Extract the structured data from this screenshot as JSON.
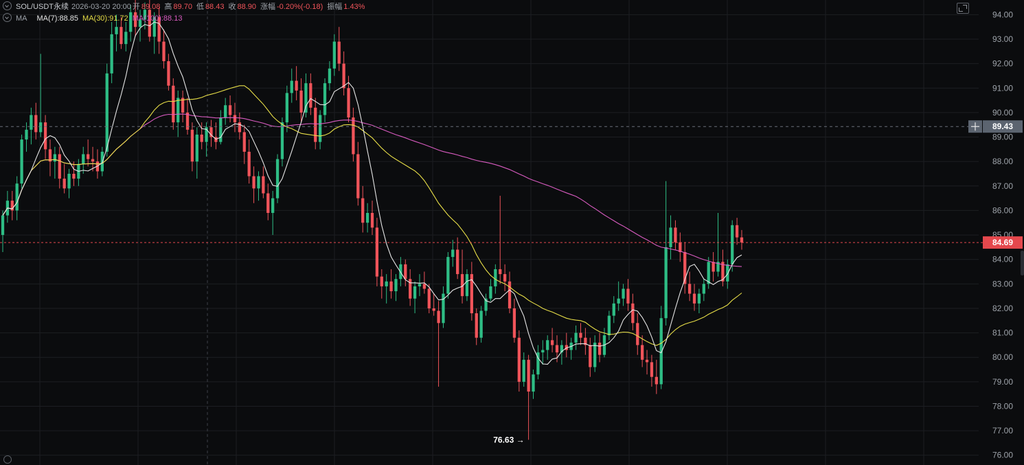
{
  "header": {
    "symbol": "SOL/USDT永续",
    "datetime": "2026-03-20 20:00",
    "open_label": "开",
    "open_value": "89.08",
    "high_label": "高",
    "high_value": "89.70",
    "low_label": "低",
    "low_value": "88.43",
    "close_label": "收",
    "close_value": "88.90",
    "change_label": "涨幅",
    "change_value": "-0.20%(-0.18)",
    "amplitude_label": "振幅",
    "amplitude_value": "1.43%",
    "indicator_name": "MA",
    "ma7_label": "MA(7):88.85",
    "ma30_label": "MA(30):91.72",
    "ma100_label": "MA(100):88.13"
  },
  "colors": {
    "background": "#0b0c0e",
    "grid": "#1c1e22",
    "up": "#2ebd85",
    "down": "#f0545a",
    "ma7": "#e6e6e6",
    "ma30": "#e8df48",
    "ma100": "#d85bc0",
    "crosshair_tag": "#5c6470",
    "last_price_tag": "#e5484d",
    "axis_text": "#9ea3aa"
  },
  "icons": [
    "fullscreen-icon",
    "eye-icon",
    "crosshair-plus-icon",
    "scroll-handle"
  ],
  "chart_data": {
    "type": "candlestick",
    "y_axis_ticks": [
      "94.00",
      "93.00",
      "92.00",
      "91.00",
      "90.00",
      "89.00",
      "88.00",
      "87.00",
      "86.00",
      "85.00",
      "84.00",
      "83.00",
      "82.00",
      "81.00",
      "80.00",
      "79.00",
      "78.00",
      "77.00",
      "76.00"
    ],
    "ylim": [
      75.6,
      94.6
    ],
    "grid": true,
    "crosshair_price": "89.43",
    "last_price": "84.69",
    "low_marker": "76.63",
    "low_marker_arrow": "→",
    "candles_approx": [
      [
        85.0,
        86.0,
        84.3,
        85.8
      ],
      [
        85.8,
        86.8,
        85.5,
        86.4
      ],
      [
        86.4,
        86.8,
        85.6,
        86.0
      ],
      [
        86.0,
        87.4,
        85.6,
        87.1
      ],
      [
        87.1,
        89.1,
        86.9,
        88.9
      ],
      [
        88.9,
        89.6,
        88.4,
        89.3
      ],
      [
        89.3,
        90.2,
        88.7,
        89.9
      ],
      [
        89.9,
        90.4,
        88.9,
        89.2
      ],
      [
        89.2,
        92.4,
        89.0,
        89.6
      ],
      [
        89.6,
        89.9,
        88.1,
        88.5
      ],
      [
        88.5,
        88.9,
        87.4,
        88.0
      ],
      [
        88.0,
        88.6,
        87.3,
        88.3
      ],
      [
        88.3,
        88.6,
        86.9,
        87.3
      ],
      [
        87.3,
        87.9,
        86.7,
        86.9
      ],
      [
        86.9,
        87.7,
        86.5,
        87.5
      ],
      [
        87.5,
        88.0,
        87.0,
        87.3
      ],
      [
        87.3,
        88.1,
        87.0,
        87.9
      ],
      [
        87.9,
        88.6,
        87.5,
        88.3
      ],
      [
        88.3,
        88.9,
        87.8,
        88.1
      ],
      [
        88.1,
        88.6,
        87.6,
        88.0
      ],
      [
        88.0,
        88.5,
        87.3,
        87.6
      ],
      [
        87.6,
        88.6,
        87.4,
        88.4
      ],
      [
        88.4,
        92.0,
        88.2,
        91.6
      ],
      [
        91.6,
        93.7,
        91.2,
        93.2
      ],
      [
        93.2,
        94.0,
        92.5,
        93.5
      ],
      [
        93.5,
        93.9,
        92.6,
        92.8
      ],
      [
        92.8,
        93.7,
        92.5,
        93.3
      ],
      [
        93.3,
        94.4,
        92.9,
        94.1
      ],
      [
        94.1,
        94.6,
        93.1,
        93.5
      ],
      [
        93.5,
        94.2,
        92.9,
        93.8
      ],
      [
        93.8,
        94.5,
        93.4,
        94.2
      ],
      [
        94.2,
        94.6,
        92.9,
        93.1
      ],
      [
        93.1,
        94.1,
        92.4,
        93.9
      ],
      [
        93.9,
        94.3,
        92.4,
        92.9
      ],
      [
        92.9,
        93.4,
        91.8,
        92.1
      ],
      [
        92.1,
        92.4,
        90.9,
        91.1
      ],
      [
        91.1,
        91.4,
        89.3,
        89.6
      ],
      [
        89.6,
        90.9,
        89.0,
        90.6
      ],
      [
        90.6,
        90.9,
        89.6,
        90.0
      ],
      [
        90.0,
        90.6,
        89.1,
        89.3
      ],
      [
        89.3,
        89.6,
        87.6,
        88.0
      ],
      [
        88.0,
        89.4,
        87.3,
        89.1
      ],
      [
        89.1,
        89.6,
        88.5,
        88.8
      ],
      [
        88.8,
        89.6,
        88.2,
        89.4
      ],
      [
        89.4,
        89.7,
        88.6,
        89.0
      ],
      [
        89.0,
        89.6,
        88.5,
        88.8
      ],
      [
        88.8,
        90.1,
        88.7,
        89.8
      ],
      [
        89.8,
        90.6,
        89.5,
        90.3
      ],
      [
        90.3,
        90.7,
        89.6,
        89.9
      ],
      [
        89.9,
        90.4,
        89.2,
        89.6
      ],
      [
        89.6,
        90.0,
        88.9,
        89.2
      ],
      [
        89.2,
        89.5,
        87.9,
        88.4
      ],
      [
        88.4,
        88.9,
        87.1,
        87.4
      ],
      [
        87.4,
        87.8,
        86.3,
        86.9
      ],
      [
        86.9,
        87.6,
        86.4,
        87.4
      ],
      [
        87.4,
        87.8,
        86.5,
        86.7
      ],
      [
        86.7,
        87.1,
        85.6,
        85.9
      ],
      [
        85.9,
        86.8,
        85.0,
        86.5
      ],
      [
        86.5,
        88.3,
        86.3,
        88.1
      ],
      [
        88.1,
        89.8,
        87.8,
        89.6
      ],
      [
        89.6,
        91.1,
        89.2,
        90.8
      ],
      [
        90.8,
        91.8,
        90.4,
        91.3
      ],
      [
        91.3,
        91.9,
        90.5,
        90.9
      ],
      [
        90.9,
        91.4,
        89.6,
        90.0
      ],
      [
        90.0,
        91.6,
        89.8,
        91.2
      ],
      [
        91.2,
        91.6,
        89.9,
        90.2
      ],
      [
        90.2,
        90.6,
        88.5,
        88.8
      ],
      [
        88.8,
        90.1,
        88.5,
        89.9
      ],
      [
        89.9,
        91.4,
        89.6,
        91.2
      ],
      [
        91.2,
        92.1,
        90.9,
        91.8
      ],
      [
        91.8,
        93.2,
        91.5,
        92.9
      ],
      [
        92.9,
        93.5,
        91.7,
        92.0
      ],
      [
        92.0,
        92.5,
        90.7,
        91.0
      ],
      [
        91.0,
        91.5,
        89.6,
        89.8
      ],
      [
        89.8,
        90.2,
        88.0,
        88.3
      ],
      [
        88.3,
        88.8,
        86.2,
        86.5
      ],
      [
        86.5,
        87.0,
        85.1,
        85.5
      ],
      [
        85.5,
        86.3,
        85.1,
        85.9
      ],
      [
        85.9,
        86.4,
        85.0,
        85.3
      ],
      [
        85.3,
        85.7,
        82.9,
        83.3
      ],
      [
        83.3,
        83.6,
        82.4,
        82.9
      ],
      [
        82.9,
        83.4,
        82.2,
        83.1
      ],
      [
        83.1,
        83.6,
        82.4,
        82.7
      ],
      [
        82.7,
        83.4,
        82.3,
        83.2
      ],
      [
        83.2,
        84.1,
        82.9,
        83.8
      ],
      [
        83.8,
        84.0,
        82.9,
        83.2
      ],
      [
        83.2,
        83.6,
        82.1,
        82.4
      ],
      [
        82.4,
        83.1,
        81.8,
        82.9
      ],
      [
        82.9,
        83.4,
        82.5,
        83.0
      ],
      [
        83.0,
        83.5,
        82.6,
        82.8
      ],
      [
        82.8,
        83.0,
        81.8,
        82.0
      ],
      [
        82.0,
        82.6,
        81.7,
        81.9
      ],
      [
        81.9,
        82.3,
        78.8,
        81.4
      ],
      [
        81.4,
        82.9,
        81.2,
        82.6
      ],
      [
        82.6,
        84.3,
        82.4,
        84.1
      ],
      [
        84.1,
        84.8,
        83.7,
        84.4
      ],
      [
        84.4,
        84.9,
        83.2,
        83.4
      ],
      [
        83.4,
        84.4,
        82.2,
        82.5
      ],
      [
        82.5,
        83.6,
        82.3,
        83.4
      ],
      [
        83.4,
        83.9,
        81.5,
        81.8
      ],
      [
        81.8,
        82.0,
        80.5,
        80.8
      ],
      [
        80.8,
        82.1,
        80.6,
        81.9
      ],
      [
        81.9,
        82.6,
        81.7,
        82.4
      ],
      [
        82.4,
        83.2,
        82.3,
        82.9
      ],
      [
        82.9,
        83.8,
        82.6,
        83.6
      ],
      [
        83.6,
        86.6,
        83.0,
        83.4
      ],
      [
        83.4,
        83.8,
        82.7,
        83.1
      ],
      [
        83.1,
        83.5,
        81.8,
        82.0
      ],
      [
        82.0,
        82.4,
        80.6,
        80.8
      ],
      [
        80.8,
        81.1,
        78.6,
        79.0
      ],
      [
        79.0,
        80.2,
        78.8,
        79.9
      ],
      [
        79.9,
        80.1,
        76.63,
        78.6
      ],
      [
        78.6,
        79.5,
        78.3,
        79.3
      ],
      [
        79.3,
        80.5,
        79.1,
        80.2
      ],
      [
        80.2,
        80.7,
        79.7,
        80.3
      ],
      [
        80.3,
        80.9,
        79.9,
        80.7
      ],
      [
        80.7,
        81.2,
        80.2,
        80.5
      ],
      [
        80.5,
        80.9,
        79.8,
        80.2
      ],
      [
        80.2,
        80.7,
        79.7,
        80.5
      ],
      [
        80.5,
        81.0,
        80.0,
        80.3
      ],
      [
        80.3,
        80.8,
        79.9,
        80.6
      ],
      [
        80.6,
        81.3,
        80.3,
        81.0
      ],
      [
        81.0,
        81.4,
        80.5,
        80.8
      ],
      [
        80.8,
        81.2,
        80.1,
        80.5
      ],
      [
        80.5,
        80.8,
        79.2,
        79.6
      ],
      [
        79.6,
        80.9,
        79.4,
        80.6
      ],
      [
        80.6,
        81.0,
        79.8,
        80.1
      ],
      [
        80.1,
        81.2,
        80.0,
        80.9
      ],
      [
        80.9,
        81.9,
        80.7,
        81.7
      ],
      [
        81.7,
        82.5,
        81.4,
        82.2
      ],
      [
        82.2,
        83.1,
        81.9,
        82.4
      ],
      [
        82.4,
        83.0,
        82.1,
        82.8
      ],
      [
        82.8,
        83.2,
        81.9,
        82.2
      ],
      [
        82.2,
        82.6,
        81.1,
        81.4
      ],
      [
        81.4,
        81.8,
        80.1,
        80.5
      ],
      [
        80.5,
        80.9,
        79.6,
        79.9
      ],
      [
        79.9,
        80.3,
        79.3,
        79.8
      ],
      [
        79.8,
        80.1,
        78.8,
        79.2
      ],
      [
        79.2,
        79.9,
        78.5,
        78.9
      ],
      [
        78.9,
        82.1,
        78.7,
        81.6
      ],
      [
        81.6,
        87.2,
        81.3,
        84.5
      ],
      [
        84.5,
        85.8,
        84.0,
        85.3
      ],
      [
        85.3,
        85.6,
        84.4,
        84.7
      ],
      [
        84.7,
        85.1,
        83.9,
        84.3
      ],
      [
        84.3,
        84.7,
        82.6,
        83.0
      ],
      [
        83.0,
        83.5,
        82.3,
        82.6
      ],
      [
        82.6,
        83.0,
        81.9,
        82.2
      ],
      [
        82.2,
        82.8,
        81.8,
        82.6
      ],
      [
        82.6,
        83.2,
        82.3,
        83.0
      ],
      [
        83.0,
        84.1,
        82.8,
        83.9
      ],
      [
        83.9,
        84.3,
        83.1,
        83.5
      ],
      [
        83.5,
        85.9,
        83.3,
        83.9
      ],
      [
        83.9,
        84.4,
        82.9,
        83.1
      ],
      [
        83.1,
        84.0,
        82.8,
        83.8
      ],
      [
        83.8,
        85.6,
        83.5,
        85.4
      ],
      [
        85.4,
        85.7,
        84.6,
        84.9
      ],
      [
        84.9,
        85.2,
        84.4,
        84.69
      ]
    ]
  }
}
